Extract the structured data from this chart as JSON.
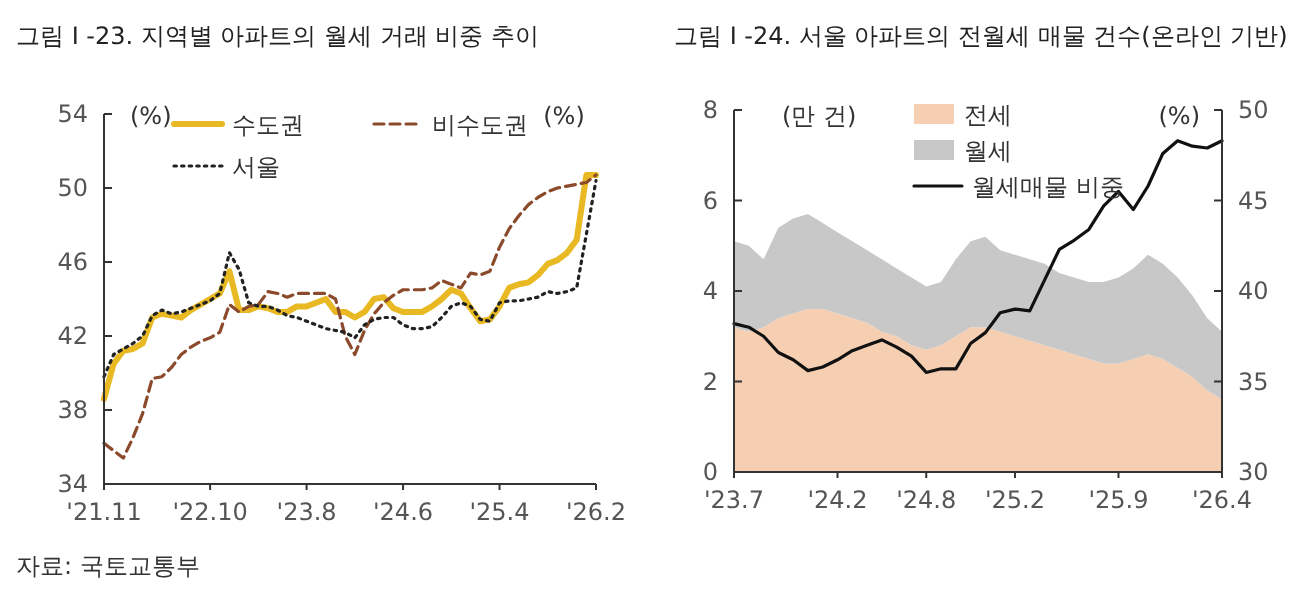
{
  "chart_data": [
    {
      "type": "line",
      "title": "그림 I -23. 지역별 아파트의 월세 거래 비중 추이",
      "ylabel": "(%)",
      "legend": "top",
      "annotations": [
        "(%)",
        "자료: 국토교통부"
      ],
      "x": [
        "2021-11",
        "2021-12",
        "2022-01",
        "2022-02",
        "2022-03",
        "2022-04",
        "2022-05",
        "2022-06",
        "2022-07",
        "2022-08",
        "2022-09",
        "2022-10",
        "2022-11",
        "2022-12",
        "2023-01",
        "2023-02",
        "2023-03",
        "2023-04",
        "2023-05",
        "2023-06",
        "2023-07",
        "2023-08",
        "2023-09",
        "2023-10",
        "2023-11",
        "2023-12",
        "2024-01",
        "2024-02",
        "2024-03",
        "2024-04",
        "2024-05",
        "2024-06",
        "2024-07",
        "2024-08",
        "2024-09",
        "2024-10",
        "2024-11",
        "2024-12",
        "2025-01",
        "2025-02",
        "2025-03",
        "2025-04",
        "2025-05",
        "2025-06",
        "2025-07",
        "2025-08",
        "2025-09",
        "2025-10",
        "2025-11",
        "2025-12",
        "2026-01",
        "2026-02"
      ],
      "xlim": [
        "2021-11",
        "2026-02"
      ],
      "xticks": [
        {
          "value": "2021-11",
          "label": "'21.11"
        },
        {
          "value": "2022-10",
          "label": "'22.10"
        },
        {
          "value": "2023-08",
          "label": "'23.8"
        },
        {
          "value": "2024-06",
          "label": "'24.6"
        },
        {
          "value": "2025-04",
          "label": "'25.4"
        },
        {
          "value": "2026-02",
          "label": "'26.2"
        }
      ],
      "ylim": [
        34,
        54
      ],
      "yticks": [
        34,
        38,
        42,
        46,
        50,
        54
      ],
      "series": [
        {
          "name": "수도권",
          "color": "#e8b923",
          "line_style": "solid",
          "values": [
            38.6,
            40.5,
            41.2,
            41.3,
            41.6,
            43.0,
            43.2,
            43.1,
            43.0,
            43.4,
            43.7,
            44.0,
            44.3,
            45.5,
            43.4,
            43.4,
            43.6,
            43.5,
            43.3,
            43.3,
            43.6,
            43.6,
            43.8,
            44.0,
            43.3,
            43.3,
            43.0,
            43.3,
            44.0,
            44.1,
            43.5,
            43.3,
            43.3,
            43.3,
            43.6,
            44.0,
            44.5,
            44.3,
            43.5,
            42.8,
            42.9,
            43.6,
            44.6,
            44.8,
            44.9,
            45.3,
            45.9,
            46.1,
            46.5,
            47.2,
            50.7,
            50.7
          ]
        },
        {
          "name": "비수도권",
          "color": "#8b4a2b",
          "line_style": "dashed",
          "values": [
            36.2,
            35.8,
            35.4,
            36.5,
            37.8,
            39.7,
            39.8,
            40.3,
            41.0,
            41.4,
            41.7,
            41.9,
            42.2,
            43.7,
            43.3,
            43.6,
            43.7,
            44.4,
            44.3,
            44.1,
            44.3,
            44.3,
            44.3,
            44.3,
            44.0,
            42.0,
            41.0,
            42.3,
            43.2,
            43.8,
            44.2,
            44.5,
            44.5,
            44.5,
            44.6,
            45.0,
            44.8,
            44.6,
            45.4,
            45.3,
            45.5,
            46.8,
            47.8,
            48.5,
            49.1,
            49.5,
            49.8,
            50.0,
            50.1,
            50.2,
            50.3,
            50.7
          ]
        },
        {
          "name": "서울",
          "color": "#222222",
          "line_style": "dotted",
          "values": [
            39.8,
            41.0,
            41.3,
            41.6,
            42.0,
            43.1,
            43.4,
            43.2,
            43.3,
            43.5,
            43.7,
            43.9,
            44.3,
            46.5,
            45.6,
            43.8,
            43.6,
            43.6,
            43.4,
            43.1,
            43.0,
            42.8,
            42.6,
            42.4,
            42.3,
            42.2,
            41.9,
            42.6,
            42.9,
            43.0,
            43.0,
            42.6,
            42.4,
            42.4,
            42.5,
            43.0,
            43.6,
            43.8,
            43.6,
            42.9,
            42.8,
            43.8,
            43.9,
            43.9,
            44.0,
            44.1,
            44.4,
            44.3,
            44.4,
            44.6,
            47.5,
            50.4
          ]
        }
      ]
    },
    {
      "type": "area",
      "stacked": true,
      "title": "그림 I -24. 서울 아파트의 전월세 매물 건수(온라인 기반)",
      "ylabel": "(만 건)",
      "y2label": "(%)",
      "legend": "top",
      "x": [
        "2023-07",
        "2023-08",
        "2023-09",
        "2023-10",
        "2023-11",
        "2023-12",
        "2024-01",
        "2024-02",
        "2024-03",
        "2024-04",
        "2024-05",
        "2024-06",
        "2024-07",
        "2024-08",
        "2024-09",
        "2024-10",
        "2024-11",
        "2024-12",
        "2025-01",
        "2025-02",
        "2025-03",
        "2025-04",
        "2025-05",
        "2025-06",
        "2025-07",
        "2025-08",
        "2025-09",
        "2025-10",
        "2025-11",
        "2025-12",
        "2026-01",
        "2026-02",
        "2026-03",
        "2026-04"
      ],
      "xlim": [
        "2023-07",
        "2026-04"
      ],
      "xticks": [
        {
          "value": "2023-07",
          "label": "'23.7"
        },
        {
          "value": "2024-02",
          "label": "'24.2"
        },
        {
          "value": "2024-08",
          "label": "'24.8"
        },
        {
          "value": "2025-02",
          "label": "'25.2"
        },
        {
          "value": "2025-09",
          "label": "'25.9"
        },
        {
          "value": "2026-04",
          "label": "'26.4"
        }
      ],
      "ylim": [
        0,
        8
      ],
      "yticks": [
        0,
        2,
        4,
        6,
        8
      ],
      "y2lim": [
        30,
        50
      ],
      "y2ticks": [
        30,
        35,
        40,
        45,
        50
      ],
      "series": [
        {
          "name": "전세",
          "color": "#f6cfb3",
          "values": [
            3.2,
            3.1,
            3.2,
            3.4,
            3.5,
            3.6,
            3.6,
            3.5,
            3.4,
            3.3,
            3.1,
            3.0,
            2.8,
            2.7,
            2.8,
            3.0,
            3.2,
            3.2,
            3.1,
            3.0,
            2.9,
            2.8,
            2.7,
            2.6,
            2.5,
            2.4,
            2.4,
            2.5,
            2.6,
            2.5,
            2.3,
            2.1,
            1.8,
            1.6
          ]
        },
        {
          "name": "월세",
          "color": "#c8c8c8",
          "values": [
            1.9,
            1.9,
            1.5,
            2.0,
            2.1,
            2.1,
            1.9,
            1.8,
            1.7,
            1.6,
            1.6,
            1.5,
            1.5,
            1.4,
            1.4,
            1.7,
            1.9,
            2.0,
            1.8,
            1.8,
            1.8,
            1.8,
            1.7,
            1.7,
            1.7,
            1.8,
            1.9,
            2.0,
            2.2,
            2.1,
            2.0,
            1.8,
            1.6,
            1.5
          ]
        },
        {
          "name": "월세매물 비중",
          "type": "line",
          "axis": "y2",
          "color": "#111111",
          "values": [
            38.2,
            38.0,
            37.5,
            36.6,
            36.2,
            35.6,
            35.8,
            36.2,
            36.7,
            37.0,
            37.3,
            36.9,
            36.4,
            35.5,
            35.7,
            35.7,
            37.1,
            37.7,
            38.8,
            39.0,
            38.9,
            40.6,
            42.3,
            42.8,
            43.4,
            44.7,
            45.5,
            44.5,
            45.8,
            47.6,
            48.3,
            48.0,
            47.9,
            48.3
          ]
        }
      ]
    }
  ]
}
